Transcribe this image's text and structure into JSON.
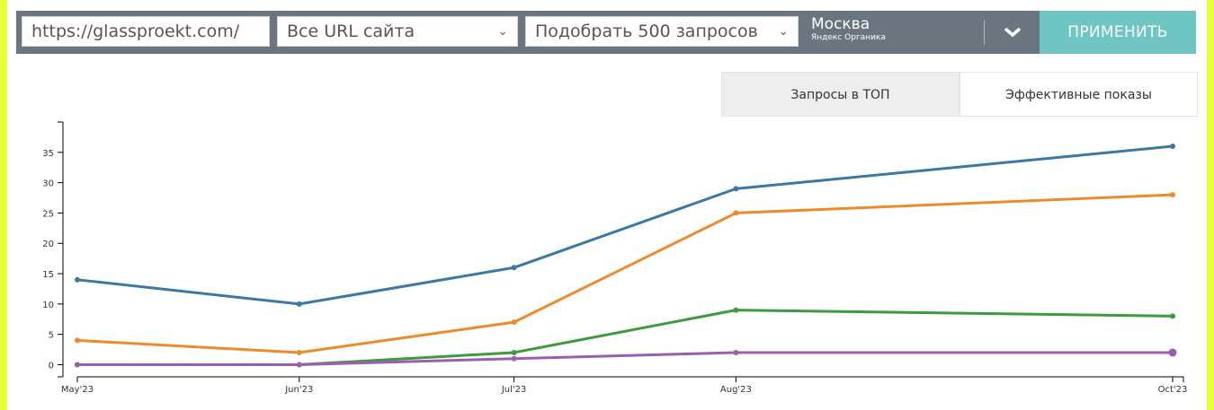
{
  "toolbar": {
    "url": "https://glassproekt.com/",
    "url_scope": "Все URL сайта",
    "query_picker": "Подобрать 500 запросов",
    "region_city": "Москва",
    "region_source": "Яндекс Органика",
    "apply_label": "ПРИМЕНИТЬ"
  },
  "tabs": [
    {
      "label": "Запросы в ТОП",
      "active": true
    },
    {
      "label": "Эффективные показы",
      "active": false
    }
  ],
  "colors": {
    "background": "#e8ff3c",
    "toolbar": "#6b7580",
    "apply": "#6fc4c4"
  },
  "chart_data": {
    "type": "line",
    "categories": [
      "May'23",
      "Jun'23",
      "Jul'23",
      "Aug'23",
      "Oct'23"
    ],
    "x_dates": [
      "2023-05-01",
      "2023-06-01",
      "2023-07-01",
      "2023-08-01",
      "2023-10-01"
    ],
    "ylim": [
      -2,
      40
    ],
    "yticks": [
      0,
      5,
      10,
      15,
      20,
      25,
      30,
      35
    ],
    "grid": false,
    "series": [
      {
        "color": "#3b78a3",
        "values": [
          14,
          10,
          16,
          29,
          36
        ]
      },
      {
        "color": "#ee8a2e",
        "values": [
          4,
          2,
          7,
          25,
          28
        ]
      },
      {
        "color": "#3d9a3d",
        "values": [
          0,
          0,
          2,
          9,
          8
        ]
      },
      {
        "color": "#9a5fb3",
        "values": [
          0,
          0,
          1,
          2,
          2
        ]
      }
    ]
  }
}
